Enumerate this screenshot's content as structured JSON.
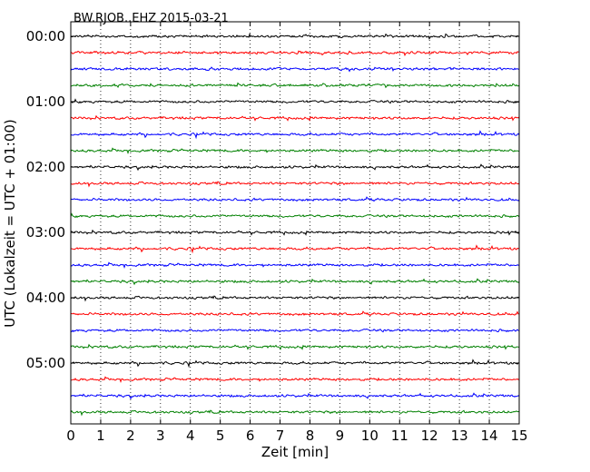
{
  "chart_data": {
    "type": "line",
    "title": "BW.RJOB..EHZ 2015-03-21",
    "xlabel": "Zeit  [min]",
    "ylabel": "UTC (Lokalzeit = UTC + 01:00)",
    "xlim": [
      0,
      15
    ],
    "xticks": [
      0,
      1,
      2,
      3,
      4,
      5,
      6,
      7,
      8,
      9,
      10,
      11,
      12,
      13,
      14,
      15
    ],
    "xtick_labels": [
      "0",
      "1",
      "2",
      "3",
      "4",
      "5",
      "6",
      "7",
      "8",
      "9",
      "10",
      "11",
      "12",
      "13",
      "14",
      "15"
    ],
    "ytick_labels": [
      "00:00",
      "01:00",
      "02:00",
      "03:00",
      "04:00",
      "05:00"
    ],
    "grid": "vertical-dotted",
    "trace_interval_min": 15,
    "colors": [
      "#000000",
      "#ff0000",
      "#0000ff",
      "#008000"
    ],
    "traces": [
      {
        "start": "00:00",
        "color": "#000000"
      },
      {
        "start": "00:15",
        "color": "#ff0000"
      },
      {
        "start": "00:30",
        "color": "#0000ff"
      },
      {
        "start": "00:45",
        "color": "#008000"
      },
      {
        "start": "01:00",
        "color": "#000000"
      },
      {
        "start": "01:15",
        "color": "#ff0000"
      },
      {
        "start": "01:30",
        "color": "#0000ff"
      },
      {
        "start": "01:45",
        "color": "#008000"
      },
      {
        "start": "02:00",
        "color": "#000000"
      },
      {
        "start": "02:15",
        "color": "#ff0000"
      },
      {
        "start": "02:30",
        "color": "#0000ff"
      },
      {
        "start": "02:45",
        "color": "#008000"
      },
      {
        "start": "03:00",
        "color": "#000000"
      },
      {
        "start": "03:15",
        "color": "#ff0000"
      },
      {
        "start": "03:30",
        "color": "#0000ff"
      },
      {
        "start": "03:45",
        "color": "#008000"
      },
      {
        "start": "04:00",
        "color": "#000000"
      },
      {
        "start": "04:15",
        "color": "#ff0000"
      },
      {
        "start": "04:30",
        "color": "#0000ff"
      },
      {
        "start": "04:45",
        "color": "#008000"
      },
      {
        "start": "05:00",
        "color": "#000000"
      },
      {
        "start": "05:15",
        "color": "#ff0000"
      },
      {
        "start": "05:30",
        "color": "#0000ff"
      },
      {
        "start": "05:45",
        "color": "#008000"
      }
    ]
  }
}
